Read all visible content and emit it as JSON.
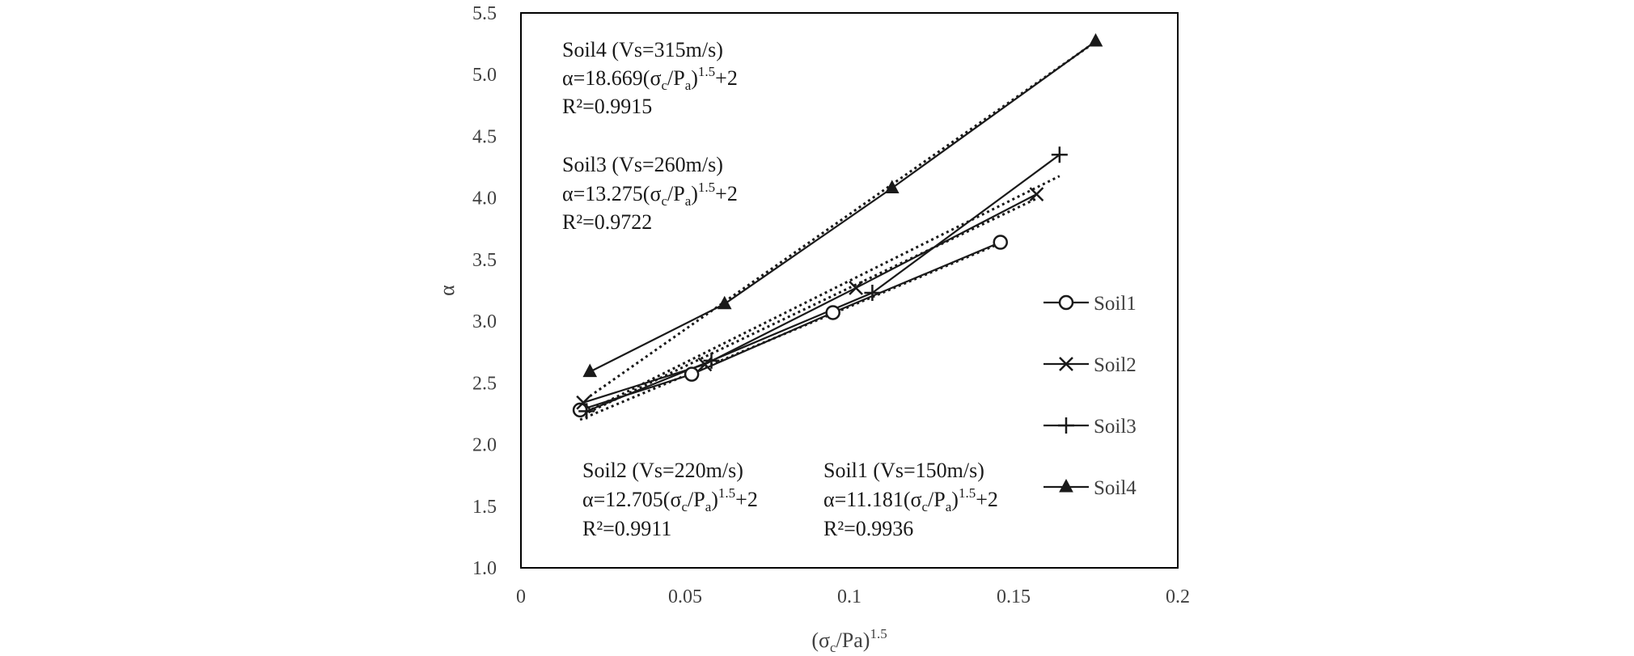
{
  "chart_data": {
    "type": "scatter",
    "title": "",
    "xlabel": {
      "base": "(σ",
      "sub": "c",
      "mid": "/Pa)",
      "sup": "1.5"
    },
    "ylabel": "α",
    "xlim": [
      0,
      0.2
    ],
    "ylim": [
      1.0,
      5.5
    ],
    "xticks": [
      0,
      0.05,
      0.1,
      0.15,
      0.2
    ],
    "xtick_labels": [
      "0",
      "0.05",
      "0.1",
      "0.15",
      "0.2"
    ],
    "yticks": [
      1.0,
      1.5,
      2.0,
      2.5,
      3.0,
      3.5,
      4.0,
      4.5,
      5.0,
      5.5
    ],
    "ytick_labels": [
      "1.0",
      "1.5",
      "2.0",
      "2.5",
      "3.0",
      "3.5",
      "4.0",
      "4.5",
      "5.0",
      "5.5"
    ],
    "grid": false,
    "legend_position": "right",
    "series": [
      {
        "name": "Soil1",
        "marker": "circle",
        "x": [
          0.018,
          0.052,
          0.095,
          0.146
        ],
        "y": [
          2.28,
          2.57,
          3.07,
          3.64
        ],
        "fit_coef": 11.181,
        "fit_intercept": 2
      },
      {
        "name": "Soil2",
        "marker": "x",
        "x": [
          0.019,
          0.056,
          0.102,
          0.157
        ],
        "y": [
          2.34,
          2.65,
          3.27,
          4.03
        ],
        "fit_coef": 12.705,
        "fit_intercept": 2
      },
      {
        "name": "Soil3",
        "marker": "plus",
        "x": [
          0.02,
          0.058,
          0.107,
          0.164
        ],
        "y": [
          2.27,
          2.68,
          3.23,
          4.35
        ],
        "fit_coef": 13.275,
        "fit_intercept": 2
      },
      {
        "name": "Soil4",
        "marker": "triangle",
        "x": [
          0.021,
          0.062,
          0.113,
          0.175
        ],
        "y": [
          2.59,
          3.14,
          4.08,
          5.27
        ],
        "fit_coef": 18.669,
        "fit_intercept": 2
      }
    ],
    "annotations": [
      {
        "id": "soil4",
        "title": "Soil4 (Vs=315m/s)",
        "eq_pre": "α=18.669(σ",
        "eq_sub1": "c",
        "eq_mid": "/P",
        "eq_sub2": "a",
        "eq_close": ")",
        "eq_sup": "1.5",
        "eq_post": "+2",
        "r2": "R²=0.9915"
      },
      {
        "id": "soil3",
        "title": "Soil3 (Vs=260m/s)",
        "eq_pre": "α=13.275(σ",
        "eq_sub1": "c",
        "eq_mid": "/P",
        "eq_sub2": "a",
        "eq_close": ")",
        "eq_sup": "1.5",
        "eq_post": "+2",
        "r2": "R²=0.9722"
      },
      {
        "id": "soil2",
        "title": "Soil2 (Vs=220m/s)",
        "eq_pre": "α=12.705(σ",
        "eq_sub1": "c",
        "eq_mid": "/P",
        "eq_sub2": "a",
        "eq_close": ")",
        "eq_sup": "1.5",
        "eq_post": "+2",
        "r2": "R²=0.9911"
      },
      {
        "id": "soil1",
        "title": "Soil1 (Vs=150m/s)",
        "eq_pre": "α=11.181(σ",
        "eq_sub1": "c",
        "eq_mid": "/P",
        "eq_sub2": "a",
        "eq_close": ")",
        "eq_sup": "1.5",
        "eq_post": "+2",
        "r2": "R²=0.9936"
      }
    ],
    "colors": {
      "line": "#1a1a1a",
      "axis": "#000000",
      "text": "#404040"
    }
  }
}
